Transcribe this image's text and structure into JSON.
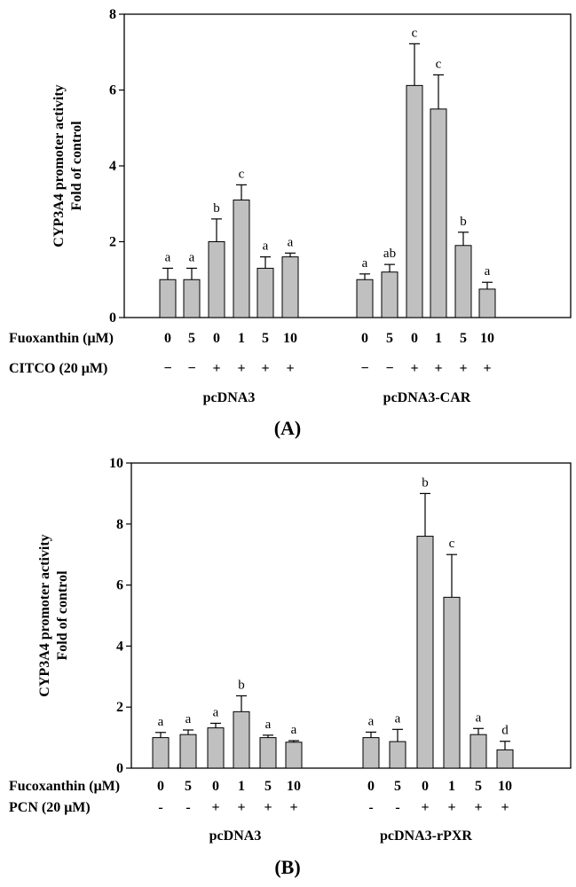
{
  "chart_data": [
    {
      "type": "bar",
      "panel_label": "(A)",
      "ylabel_lines": [
        "CYP3A4 promoter activity",
        "Fold of control"
      ],
      "ylim": [
        0,
        8
      ],
      "yticks": [
        0,
        2,
        4,
        6,
        8
      ],
      "row1_label": "Fuoxanthin (μM)",
      "row2_label": "CITCO (20 μM)",
      "groups": [
        {
          "name": "pcDNA3",
          "fucoxanthin": [
            "0",
            "5",
            "0",
            "1",
            "5",
            "10"
          ],
          "inducer": [
            "−",
            "−",
            "+",
            "+",
            "+",
            "+"
          ],
          "values": [
            1.0,
            1.0,
            2.0,
            3.1,
            1.3,
            1.6
          ],
          "errors": [
            0.3,
            0.3,
            0.6,
            0.4,
            0.3,
            0.1
          ],
          "letters": [
            "a",
            "a",
            "b",
            "c",
            "a",
            "a"
          ]
        },
        {
          "name": "pcDNA3-CAR",
          "fucoxanthin": [
            "0",
            "5",
            "0",
            "1",
            "5",
            "10"
          ],
          "inducer": [
            "−",
            "−",
            "+",
            "+",
            "+",
            "+"
          ],
          "values": [
            1.0,
            1.2,
            6.12,
            5.5,
            1.9,
            0.75
          ],
          "errors": [
            0.15,
            0.2,
            1.1,
            0.9,
            0.35,
            0.18
          ],
          "letters": [
            "a",
            "ab",
            "c",
            "c",
            "b",
            "a"
          ]
        }
      ]
    },
    {
      "type": "bar",
      "panel_label": "(B)",
      "ylabel_lines": [
        "CYP3A4  promoter activity",
        "Fold of control"
      ],
      "ylim": [
        0,
        10
      ],
      "yticks": [
        0,
        2,
        4,
        6,
        8,
        10
      ],
      "row1_label": "Fucoxanthin (μM)",
      "row2_label": "PCN (20 μM)",
      "groups": [
        {
          "name": "pcDNA3",
          "fucoxanthin": [
            "0",
            "5",
            "0",
            "1",
            "5",
            "10"
          ],
          "inducer": [
            "-",
            "-",
            "+",
            "+",
            "+",
            "+"
          ],
          "values": [
            1.0,
            1.1,
            1.32,
            1.85,
            1.0,
            0.85
          ],
          "errors": [
            0.17,
            0.15,
            0.15,
            0.52,
            0.08,
            0.05
          ],
          "letters": [
            "a",
            "a",
            "a",
            "b",
            "a",
            "a"
          ]
        },
        {
          "name": "pcDNA3-rPXR",
          "fucoxanthin": [
            "0",
            "5",
            "0",
            "1",
            "5",
            "10"
          ],
          "inducer": [
            "-",
            "-",
            "+",
            "+",
            "+",
            "+"
          ],
          "values": [
            1.0,
            0.87,
            7.6,
            5.6,
            1.1,
            0.6
          ],
          "errors": [
            0.18,
            0.4,
            1.4,
            1.4,
            0.2,
            0.28
          ],
          "letters": [
            "a",
            "a",
            "b",
            "c",
            "a",
            "d"
          ]
        }
      ]
    }
  ]
}
